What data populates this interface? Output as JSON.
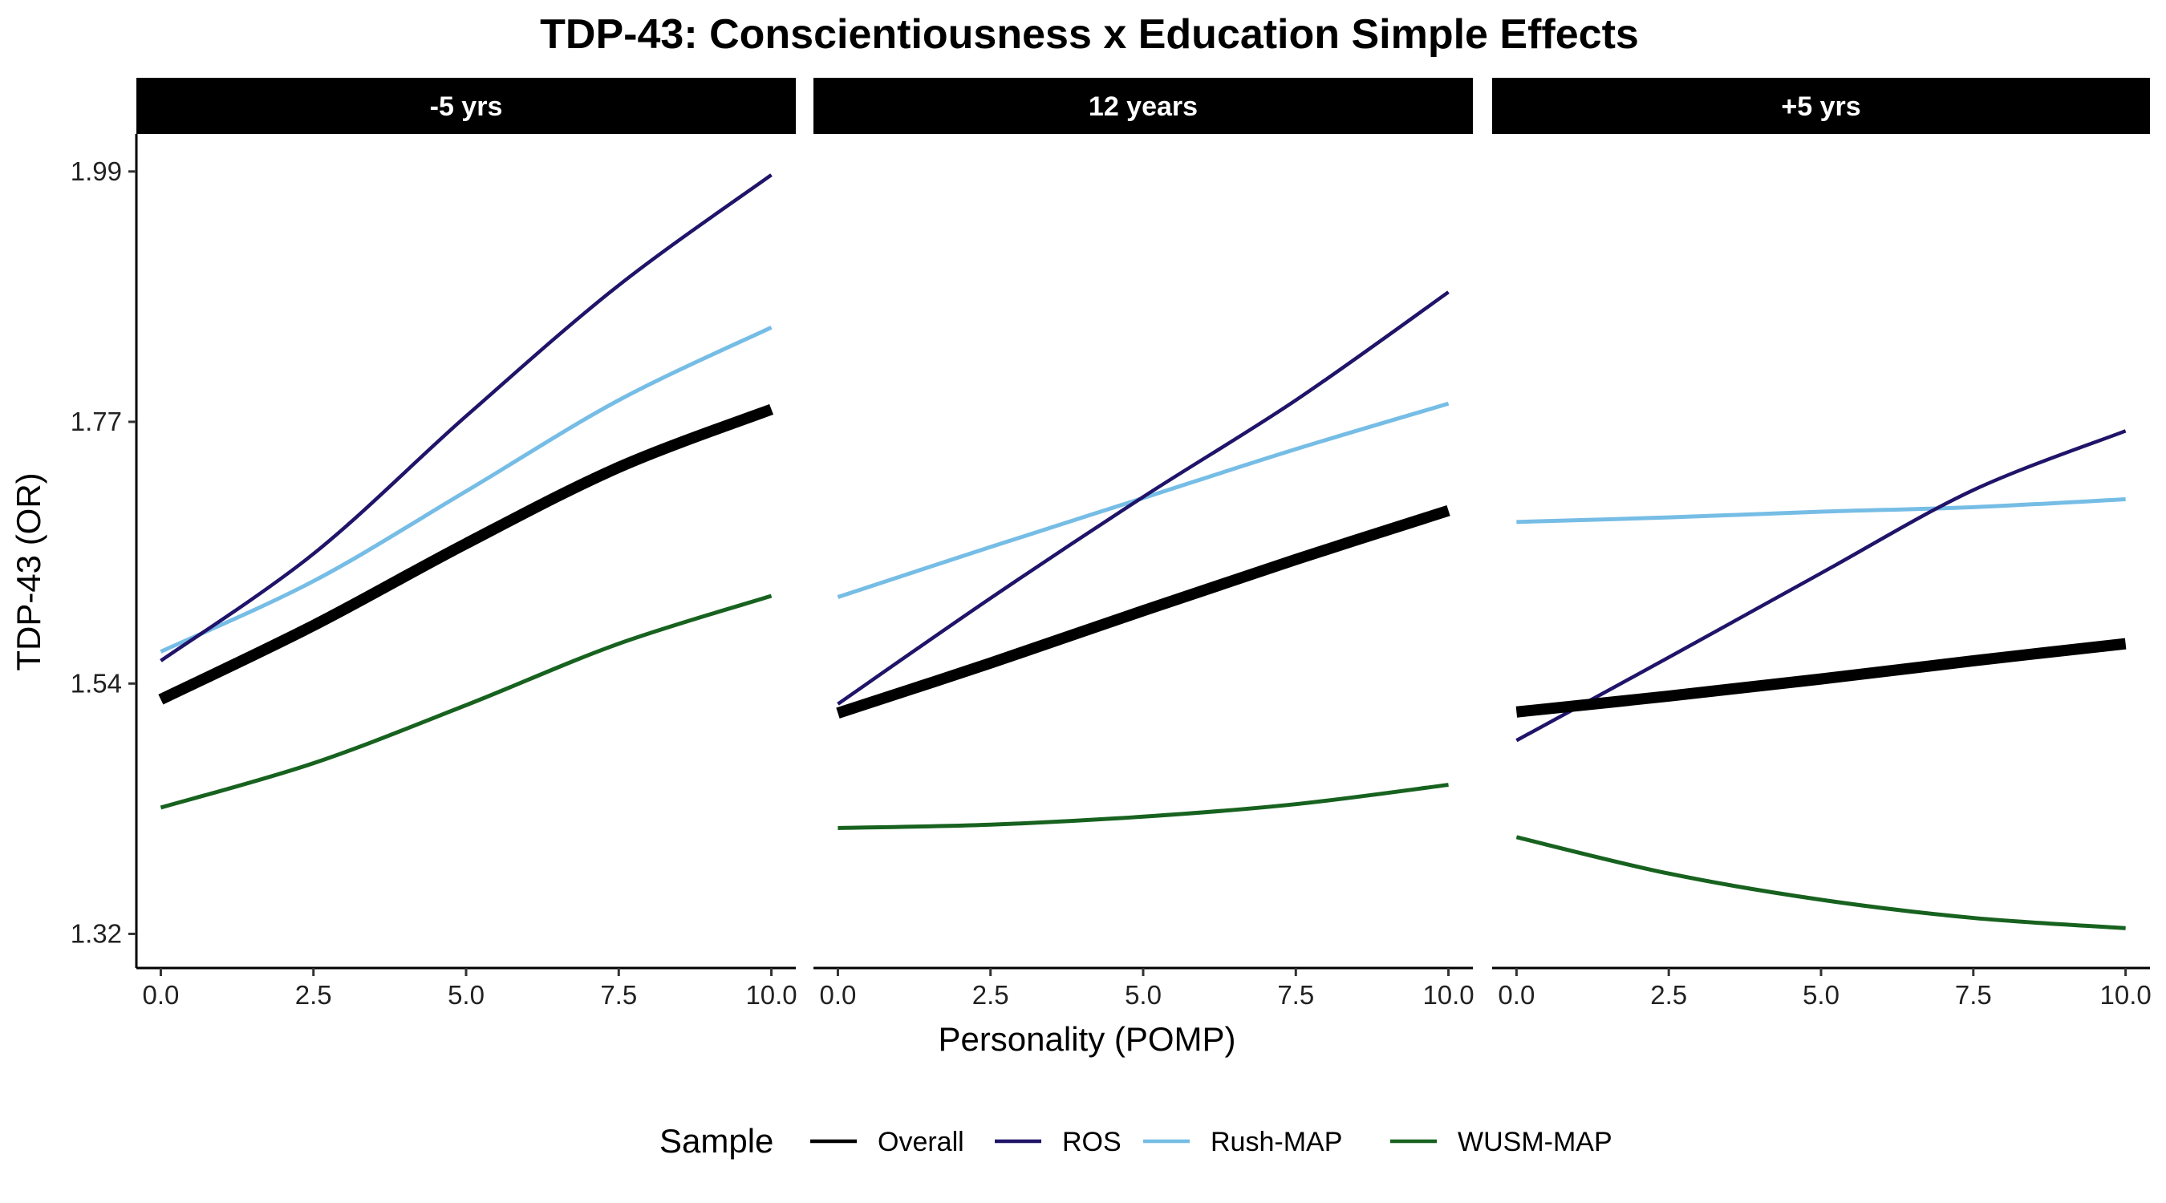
{
  "chart_data": {
    "type": "line",
    "title": "TDP-43: Conscientiousness x Education Simple Effects",
    "xlabel": "Personality (POMP)",
    "ylabel": "TDP-43 (OR)",
    "xlim": [
      -0.4,
      10.4
    ],
    "ylim": [
      1.29,
      2.023
    ],
    "x_ticks": [
      0,
      2.5,
      5,
      7.5,
      10
    ],
    "x_tick_labels": [
      "0.0",
      "2.5",
      "5.0",
      "7.5",
      "10.0"
    ],
    "y_ticks": [
      1.32,
      1.54,
      1.77,
      1.99
    ],
    "y_tick_labels": [
      "1.32",
      "1.54",
      "1.77",
      "1.99"
    ],
    "grid": false,
    "legend": {
      "title": "Sample",
      "position": "bottom",
      "entries": [
        "Overall",
        "ROS",
        "Rush-MAP",
        "WUSM-MAP"
      ]
    },
    "series_styles": {
      "Overall": {
        "color": "#000000",
        "width": 14
      },
      "ROS": {
        "color": "#1f1469",
        "width": 4.5
      },
      "Rush-MAP": {
        "color": "#76bde6",
        "width": 5
      },
      "WUSM-MAP": {
        "color": "#17621f",
        "width": 5
      }
    },
    "x": [
      0,
      2.5,
      5,
      7.5,
      10
    ],
    "panels": [
      {
        "label": "-5 yrs",
        "series": [
          {
            "name": "Overall",
            "values": [
              1.526,
              1.591,
              1.663,
              1.73,
              1.781
            ]
          },
          {
            "name": "ROS",
            "values": [
              1.56,
              1.654,
              1.775,
              1.89,
              1.987
            ]
          },
          {
            "name": "Rush-MAP",
            "values": [
              1.568,
              1.63,
              1.709,
              1.789,
              1.853
            ]
          },
          {
            "name": "WUSM-MAP",
            "values": [
              1.431,
              1.47,
              1.521,
              1.575,
              1.617
            ]
          }
        ]
      },
      {
        "label": "12 years",
        "series": [
          {
            "name": "Overall",
            "values": [
              1.514,
              1.558,
              1.604,
              1.649,
              1.692
            ]
          },
          {
            "name": "ROS",
            "values": [
              1.522,
              1.615,
              1.704,
              1.789,
              1.884
            ]
          },
          {
            "name": "Rush-MAP",
            "values": [
              1.616,
              1.66,
              1.703,
              1.746,
              1.786
            ]
          },
          {
            "name": "WUSM-MAP",
            "values": [
              1.413,
              1.416,
              1.423,
              1.434,
              1.451
            ]
          }
        ]
      },
      {
        "label": "+5 yrs",
        "series": [
          {
            "name": "Overall",
            "values": [
              1.515,
              1.529,
              1.544,
              1.56,
              1.575
            ]
          },
          {
            "name": "ROS",
            "values": [
              1.49,
              1.563,
              1.637,
              1.71,
              1.762
            ]
          },
          {
            "name": "Rush-MAP",
            "values": [
              1.682,
              1.686,
              1.691,
              1.695,
              1.702
            ]
          },
          {
            "name": "WUSM-MAP",
            "values": [
              1.405,
              1.373,
              1.35,
              1.334,
              1.325
            ]
          }
        ]
      }
    ]
  }
}
